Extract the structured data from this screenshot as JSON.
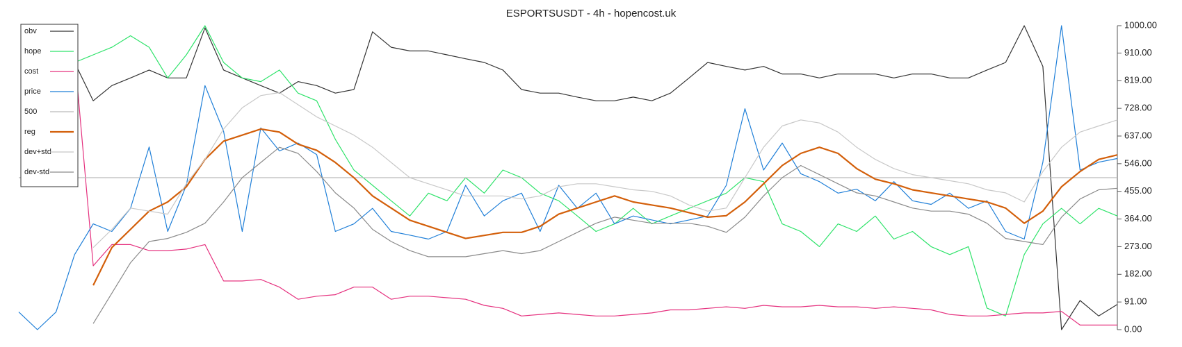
{
  "chart_data": {
    "type": "line",
    "title": "ESPORTSUSDT - 4h - hopencost.uk",
    "categories": [
      null,
      null,
      null,
      null,
      null,
      null,
      null,
      null,
      null,
      null,
      null,
      null,
      null,
      null,
      null,
      null,
      null,
      null,
      null,
      null,
      null,
      null,
      null,
      null,
      null,
      null,
      null,
      null,
      null,
      null,
      null,
      null,
      null,
      null,
      null,
      null,
      null,
      null,
      null,
      null,
      null,
      null,
      null,
      null,
      null,
      null,
      null,
      null,
      null,
      null,
      null,
      null,
      null,
      null,
      null,
      null,
      null,
      null,
      null,
      null
    ],
    "ylim": [
      0,
      1000
    ],
    "yticks": [
      {
        "value": 0,
        "label": "0.00"
      },
      {
        "value": 91,
        "label": "91.00"
      },
      {
        "value": 182,
        "label": "182.00"
      },
      {
        "value": 273,
        "label": "273.00"
      },
      {
        "value": 364,
        "label": "364.00"
      },
      {
        "value": 455,
        "label": "455.00"
      },
      {
        "value": 546,
        "label": "546.00"
      },
      {
        "value": 637,
        "label": "637.00"
      },
      {
        "value": 728,
        "label": "728.00"
      },
      {
        "value": 819,
        "label": "819.00"
      },
      {
        "value": 910,
        "label": "910.00"
      },
      {
        "value": 1000,
        "label": "1000.00"
      }
    ],
    "legend": "upper-left",
    "series": [
      {
        "name": "obv",
        "color": "#333333",
        "width": 1.2,
        "values": [
          null,
          null,
          null,
          879,
          753,
          803,
          828,
          854,
          828,
          828,
          993,
          854,
          828,
          803,
          778,
          816,
          803,
          778,
          790,
          980,
          929,
          917,
          917,
          904,
          891,
          879,
          854,
          790,
          778,
          778,
          765,
          753,
          753,
          765,
          753,
          778,
          828,
          879,
          866,
          854,
          866,
          841,
          841,
          828,
          841,
          841,
          841,
          828,
          841,
          841,
          828,
          828,
          854,
          879,
          1000,
          866,
          0,
          96,
          45,
          83
        ]
      },
      {
        "name": "hope",
        "color": "#2ee36a",
        "width": 1.2,
        "values": [
          null,
          null,
          null,
          879,
          904,
          929,
          967,
          929,
          828,
          904,
          1000,
          879,
          828,
          816,
          854,
          778,
          753,
          626,
          525,
          475,
          424,
          374,
          449,
          424,
          500,
          449,
          525,
          500,
          449,
          424,
          374,
          323,
          348,
          399,
          348,
          374,
          399,
          424,
          449,
          500,
          487,
          348,
          323,
          273,
          348,
          323,
          374,
          298,
          323,
          273,
          247,
          273,
          71,
          45,
          247,
          348,
          399,
          348,
          399,
          374
        ]
      },
      {
        "name": "cost",
        "color": "#e5307e",
        "width": 1.2,
        "values": [
          null,
          null,
          null,
          904,
          210,
          280,
          280,
          260,
          260,
          265,
          280,
          160,
          160,
          165,
          140,
          100,
          110,
          115,
          140,
          140,
          100,
          110,
          110,
          105,
          100,
          80,
          70,
          45,
          50,
          55,
          50,
          45,
          45,
          50,
          55,
          65,
          65,
          70,
          75,
          70,
          80,
          75,
          75,
          80,
          75,
          75,
          70,
          75,
          70,
          65,
          50,
          45,
          45,
          50,
          55,
          55,
          60,
          15,
          15,
          15
        ]
      },
      {
        "name": "price",
        "color": "#1f7fd8",
        "width": 1.2,
        "values": [
          58,
          0,
          58,
          247,
          348,
          323,
          399,
          601,
          323,
          475,
          803,
          652,
          323,
          664,
          588,
          614,
          576,
          323,
          348,
          399,
          323,
          311,
          298,
          323,
          475,
          374,
          424,
          449,
          323,
          475,
          399,
          449,
          348,
          374,
          361,
          348,
          361,
          374,
          475,
          727,
          525,
          614,
          513,
          487,
          449,
          462,
          424,
          487,
          424,
          412,
          449,
          399,
          424,
          323,
          298,
          551,
          1000,
          525,
          551,
          563
        ]
      },
      {
        "name": "500",
        "color": "#bbbbbb",
        "width": 1.2,
        "values": [
          500,
          500,
          500,
          500,
          500,
          500,
          500,
          500,
          500,
          500,
          500,
          500,
          500,
          500,
          500,
          500,
          500,
          500,
          500,
          500,
          500,
          500,
          500,
          500,
          500,
          500,
          500,
          500,
          500,
          500,
          500,
          500,
          500,
          500,
          500,
          500,
          500,
          500,
          500,
          500,
          500,
          500,
          500,
          500,
          500,
          500,
          500,
          500,
          500,
          500,
          500,
          500,
          500,
          500,
          500,
          500,
          500,
          500,
          500,
          500
        ]
      },
      {
        "name": "reg",
        "color": "#d35f0a",
        "width": 2.2,
        "values": [
          null,
          null,
          null,
          null,
          146,
          270,
          330,
          390,
          420,
          470,
          560,
          620,
          640,
          660,
          650,
          610,
          590,
          550,
          500,
          440,
          400,
          360,
          340,
          320,
          300,
          310,
          320,
          320,
          340,
          380,
          400,
          420,
          440,
          420,
          410,
          400,
          385,
          370,
          375,
          420,
          480,
          540,
          580,
          600,
          580,
          530,
          495,
          480,
          460,
          450,
          440,
          430,
          420,
          400,
          350,
          390,
          470,
          520,
          560,
          575
        ]
      },
      {
        "name": "dev+std",
        "color": "#c8c8c8",
        "width": 1.2,
        "values": [
          null,
          null,
          null,
          null,
          270,
          330,
          400,
          390,
          380,
          480,
          560,
          660,
          730,
          770,
          780,
          740,
          700,
          670,
          640,
          600,
          550,
          500,
          480,
          460,
          440,
          440,
          440,
          430,
          440,
          470,
          480,
          480,
          470,
          460,
          455,
          440,
          410,
          390,
          400,
          500,
          600,
          670,
          690,
          680,
          650,
          600,
          560,
          530,
          510,
          500,
          490,
          480,
          460,
          450,
          420,
          520,
          600,
          650,
          670,
          690
        ]
      },
      {
        "name": "dev-std",
        "color": "#8a8a8a",
        "width": 1.2,
        "values": [
          null,
          null,
          null,
          null,
          20,
          120,
          220,
          290,
          300,
          320,
          350,
          420,
          500,
          550,
          600,
          580,
          520,
          450,
          400,
          330,
          290,
          260,
          240,
          240,
          240,
          250,
          260,
          250,
          260,
          290,
          320,
          350,
          370,
          360,
          350,
          350,
          350,
          340,
          320,
          370,
          440,
          500,
          540,
          510,
          480,
          450,
          440,
          420,
          400,
          390,
          390,
          380,
          350,
          300,
          290,
          280,
          370,
          430,
          460,
          465
        ]
      }
    ]
  }
}
